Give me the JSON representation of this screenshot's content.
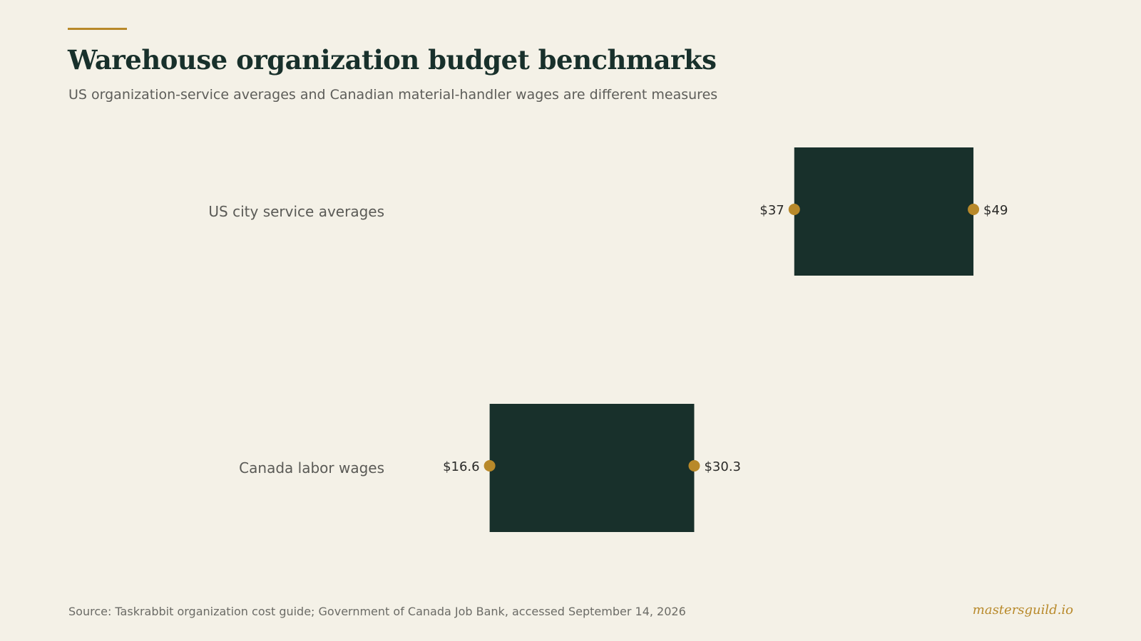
{
  "header": {
    "title": "Warehouse organization budget benchmarks",
    "subtitle": "US organization-service averages and Canadian material-handler wages are different measures"
  },
  "footer": {
    "source": "Source: Taskrabbit organization cost guide; Government of Canada Job Bank, accessed September 14, 2026",
    "brand": "mastersguild.io"
  },
  "colors": {
    "background": "#f4f1e7",
    "bar": "#18302b",
    "accent": "#b8892a",
    "title": "#18302b"
  },
  "chart_data": {
    "type": "bar",
    "subtype": "range",
    "categories": [
      "US city service averages",
      "Canada labor wages"
    ],
    "ranges": [
      {
        "low": 37,
        "high": 49,
        "low_label": "$37",
        "high_label": "$49"
      },
      {
        "low": 16.6,
        "high": 30.3,
        "low_label": "$16.6",
        "high_label": "$30.3"
      }
    ],
    "xlim": [
      0,
      50
    ],
    "grid": false,
    "axes_visible": false
  }
}
